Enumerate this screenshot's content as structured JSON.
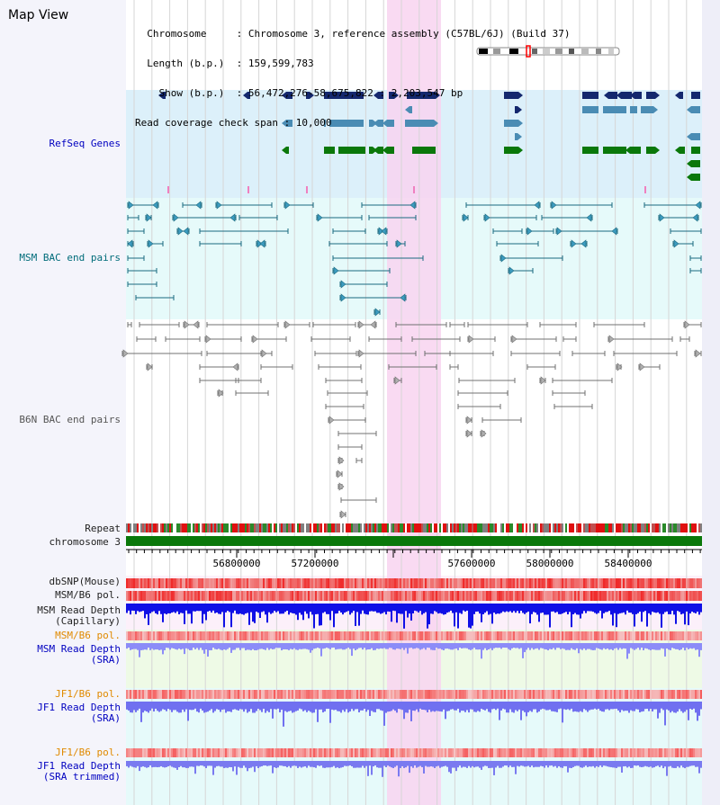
{
  "header": {
    "title": "Map View",
    "info_lines": [
      "  Chromosome     : Chromosome 3, reference assembly (C57BL/6J) (Build 37)",
      "  Length (b.p.)  : 159,599,783",
      "    Show (b.p.)  : 56,472,276-58,675,822 : 2,203,547 bp",
      "Read coverage check span : 10,000"
    ]
  },
  "tracks": {
    "refseq": "RefSeq Genes",
    "msm_bac": "MSM BAC end pairs",
    "b6n_bac": "B6N BAC end pairs",
    "repeat": "Repeat",
    "chromosome": "chromosome 3",
    "dbsnp": "dbSNP(Mouse)",
    "msm_b6_pol": "MSM/B6 pol.",
    "msm_read_cap_1": "MSM Read Depth",
    "msm_read_cap_2": "(Capillary)",
    "msm_b6_pol_sra": "MSM/B6 pol.",
    "msm_read_sra_1": "MSM Read Depth",
    "msm_read_sra_2": "(SRA)",
    "jf1_b6_pol": "JF1/B6 pol.",
    "jf1_read_sra_1": "JF1 Read Depth",
    "jf1_read_sra_2": "(SRA)",
    "jf1_b6_pol_trim": "JF1/B6 pol.",
    "jf1_read_trim_1": "JF1 Read Depth",
    "jf1_read_trim_2": "(SRA trimmed)"
  },
  "axis": {
    "ticks": [
      "56800000",
      "57200000",
      "57600000",
      "58000000",
      "58400000"
    ]
  },
  "colors": {
    "refseq_bg": "#dcf0fa",
    "msm_bg": "#e6fafa",
    "highlight": "#f8d4f0",
    "gene_navy": "#14286e",
    "gene_teal": "#4a8cb4",
    "gene_green": "#0a780a",
    "chrom_green": "#0a780a"
  }
}
